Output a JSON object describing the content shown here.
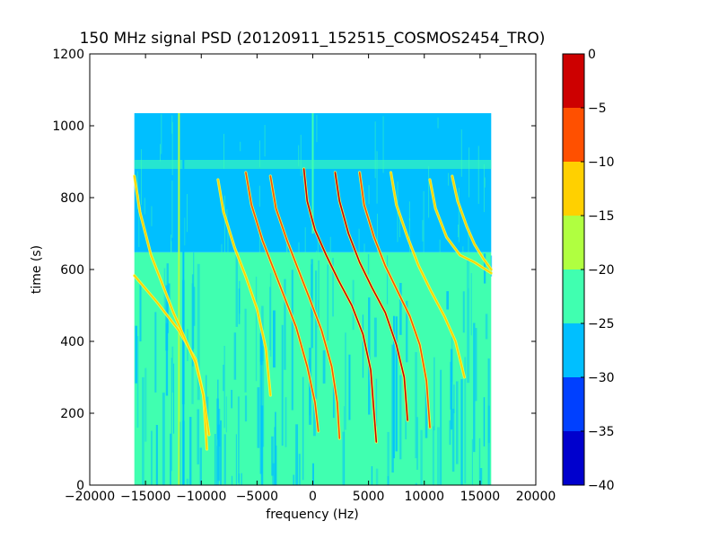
{
  "chart_data": {
    "type": "heatmap",
    "title": "150 MHz signal PSD (20120911_152515_COSMOS2454_TRO)",
    "xlabel": "frequency (Hz)",
    "ylabel": "time (s)",
    "xlim": [
      -20000,
      20000
    ],
    "ylim": [
      0,
      1200
    ],
    "xticks": [
      -20000,
      -15000,
      -10000,
      -5000,
      0,
      5000,
      10000,
      15000,
      20000
    ],
    "xtick_labels": [
      "−20000",
      "−15000",
      "−10000",
      "−5000",
      "0",
      "5000",
      "10000",
      "15000",
      "20000"
    ],
    "yticks": [
      0,
      200,
      400,
      600,
      800,
      1000,
      1200
    ],
    "ytick_labels": [
      "0",
      "200",
      "400",
      "600",
      "800",
      "1000",
      "1200"
    ],
    "data_extent": {
      "x": [
        -16000,
        16000
      ],
      "y": [
        0,
        1035
      ]
    },
    "background_level_boundary_time": 648,
    "regions": [
      {
        "name": "lower",
        "y": [
          0,
          648
        ],
        "level": -22.5
      },
      {
        "name": "upper",
        "y": [
          648,
          1035
        ],
        "level": -27.5
      }
    ],
    "tracks": [
      {
        "points": [
          [
            -16000,
            583
          ],
          [
            -14000,
            510
          ],
          [
            -12000,
            430
          ],
          [
            -10500,
            350
          ],
          [
            -9800,
            250
          ],
          [
            -9500,
            100
          ]
        ],
        "level": -15
      },
      {
        "points": [
          [
            -16000,
            860
          ],
          [
            -15500,
            760
          ],
          [
            -14500,
            640
          ],
          [
            -13500,
            560
          ],
          [
            -12500,
            480
          ],
          [
            -11500,
            410
          ],
          [
            -10500,
            340
          ],
          [
            -9800,
            250
          ],
          [
            -9300,
            140
          ]
        ],
        "level": -15
      },
      {
        "points": [
          [
            -8500,
            850
          ],
          [
            -8000,
            760
          ],
          [
            -7000,
            660
          ],
          [
            -6000,
            580
          ],
          [
            -5000,
            490
          ],
          [
            -4200,
            380
          ],
          [
            -3800,
            250
          ]
        ],
        "level": -15
      },
      {
        "points": [
          [
            -6000,
            870
          ],
          [
            -5500,
            780
          ],
          [
            -4500,
            680
          ],
          [
            -3500,
            600
          ],
          [
            -2500,
            520
          ],
          [
            -1500,
            440
          ],
          [
            -500,
            330
          ],
          [
            200,
            230
          ],
          [
            500,
            150
          ]
        ],
        "level": -8
      },
      {
        "points": [
          [
            -3800,
            860
          ],
          [
            -3300,
            770
          ],
          [
            -2300,
            680
          ],
          [
            -1300,
            600
          ],
          [
            -300,
            520
          ],
          [
            800,
            430
          ],
          [
            1700,
            330
          ],
          [
            2200,
            230
          ],
          [
            2400,
            130
          ]
        ],
        "level": -8
      },
      {
        "points": [
          [
            -800,
            880
          ],
          [
            -500,
            790
          ],
          [
            200,
            710
          ],
          [
            1200,
            640
          ],
          [
            2300,
            570
          ],
          [
            3500,
            500
          ],
          [
            4500,
            420
          ],
          [
            5200,
            320
          ],
          [
            5500,
            200
          ],
          [
            5700,
            120
          ]
        ],
        "level": -5
      },
      {
        "points": [
          [
            2000,
            870
          ],
          [
            2400,
            790
          ],
          [
            3200,
            700
          ],
          [
            4200,
            620
          ],
          [
            5300,
            550
          ],
          [
            6500,
            480
          ],
          [
            7500,
            390
          ],
          [
            8200,
            300
          ],
          [
            8500,
            180
          ]
        ],
        "level": -5
      },
      {
        "points": [
          [
            4200,
            870
          ],
          [
            4600,
            780
          ],
          [
            5500,
            690
          ],
          [
            6500,
            610
          ],
          [
            7600,
            540
          ],
          [
            8700,
            470
          ],
          [
            9600,
            390
          ],
          [
            10200,
            290
          ],
          [
            10500,
            160
          ]
        ],
        "level": -8
      },
      {
        "points": [
          [
            7000,
            870
          ],
          [
            7500,
            780
          ],
          [
            8500,
            690
          ],
          [
            9500,
            610
          ],
          [
            10600,
            540
          ],
          [
            11800,
            470
          ],
          [
            12800,
            400
          ],
          [
            13600,
            300
          ]
        ],
        "level": -15
      },
      {
        "points": [
          [
            10500,
            850
          ],
          [
            11000,
            770
          ],
          [
            12000,
            690
          ],
          [
            13200,
            640
          ],
          [
            14500,
            620
          ],
          [
            15500,
            600
          ],
          [
            16000,
            590
          ]
        ],
        "level": -15
      },
      {
        "points": [
          [
            12500,
            860
          ],
          [
            13000,
            790
          ],
          [
            13800,
            720
          ],
          [
            14500,
            670
          ],
          [
            15300,
            630
          ],
          [
            16000,
            600
          ]
        ],
        "level": -15
      }
    ],
    "vertical_lines": [
      {
        "x": -12000,
        "y": [
          0,
          1035
        ],
        "level": -17
      },
      {
        "x": -11600,
        "y": [
          0,
          1035
        ],
        "level": -27
      },
      {
        "x": 0,
        "y": [
          700,
          1035
        ],
        "level": -22
      }
    ],
    "horizontal_bands": [
      {
        "y": [
          880,
          905
        ],
        "level": -25
      }
    ],
    "colorbar": {
      "levels": [
        -40,
        -35,
        -30,
        -25,
        -20,
        -15,
        -10,
        -5,
        0
      ],
      "tick_labels": [
        "−40",
        "−35",
        "−30",
        "−25",
        "−20",
        "−15",
        "−10",
        "−5",
        "0"
      ],
      "colors": [
        "#0000cd",
        "#0040ff",
        "#00bfff",
        "#40ffb0",
        "#b0ff40",
        "#ffd000",
        "#ff5000",
        "#cd0000"
      ]
    }
  }
}
